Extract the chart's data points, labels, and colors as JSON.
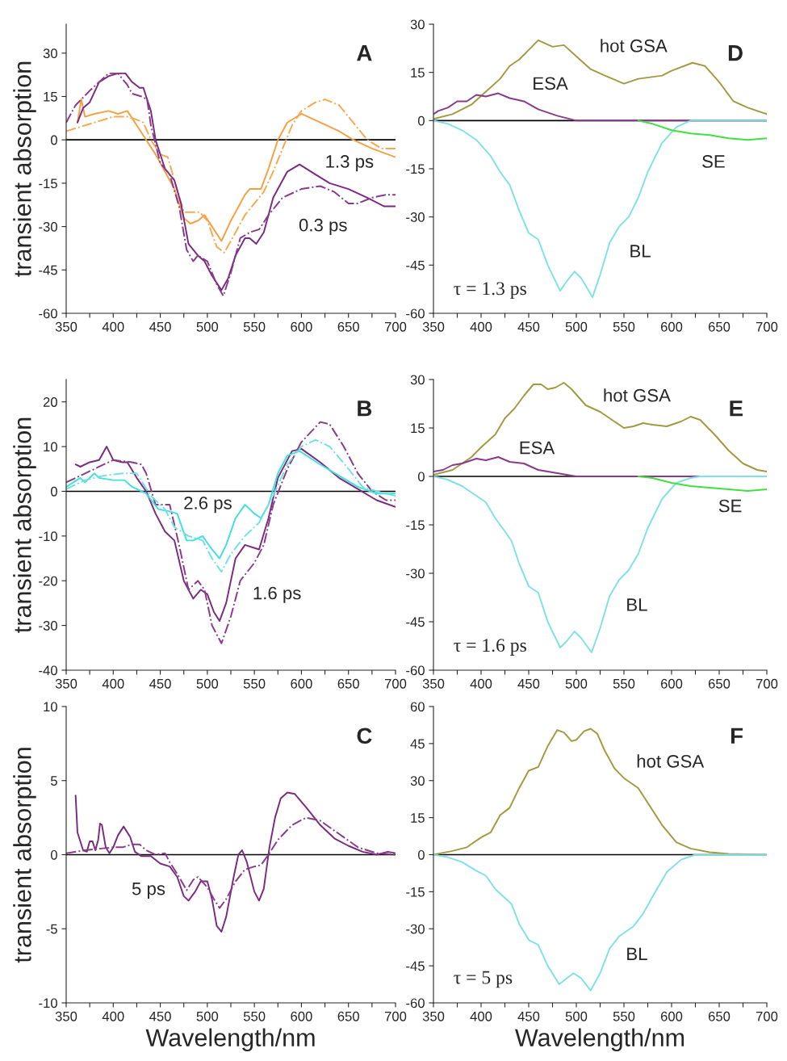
{
  "chart_data": [
    {
      "type": "line",
      "title": "A",
      "ylabel": "transient absorption",
      "xlim": [
        350,
        700
      ],
      "ylim": [
        -60,
        40
      ],
      "xticks": [
        350,
        {
          "value": 375,
          "label": null
        },
        400,
        {
          "value": 425,
          "label": null
        },
        450,
        {
          "value": 475,
          "label": null
        },
        500,
        {
          "value": 525,
          "label": null
        },
        550,
        {
          "value": 575,
          "label": null
        },
        600,
        {
          "value": 625,
          "label": null
        },
        650,
        {
          "value": 675,
          "label": null
        },
        700
      ],
      "yticks": [
        -60,
        -45,
        -30,
        -15,
        0,
        15,
        30
      ],
      "grid": false,
      "legend": false,
      "ref_lines": [
        {
          "axis": "y",
          "value": 0,
          "color": "#000000"
        }
      ],
      "series": [
        {
          "name": "1.3 ps",
          "color": "#f5a040",
          "line_style": "solid",
          "x": [
            362,
            366,
            370,
            380,
            395,
            405,
            415,
            425,
            435,
            445,
            455,
            465,
            475,
            482,
            490,
            497,
            505,
            515,
            525,
            540,
            545,
            557,
            565,
            575,
            585,
            600,
            620,
            640,
            655,
            675,
            700
          ],
          "values": [
            6,
            14,
            8,
            9,
            10,
            9,
            10,
            5,
            0,
            -5,
            -11,
            -17,
            -27,
            -29,
            -28,
            -26,
            -30,
            -35,
            -28,
            -19,
            -17,
            -17,
            -10,
            0,
            6,
            9,
            6,
            3,
            0,
            -3,
            -6
          ]
        },
        {
          "color": "#f5a850",
          "line_style": "dashed",
          "x": [
            350,
            360,
            380,
            400,
            415,
            425,
            432,
            440,
            450,
            458,
            465,
            475,
            485,
            492,
            500,
            510,
            518,
            525,
            540,
            550,
            560,
            570,
            580,
            590,
            600,
            615,
            625,
            640,
            655,
            670,
            685,
            700
          ],
          "values": [
            3,
            4,
            6,
            8,
            8,
            7,
            6,
            0,
            -5,
            -6,
            -14,
            -25,
            -25,
            -25,
            -28,
            -37,
            -39,
            -35,
            -26,
            -22,
            -18,
            -11,
            -3,
            5,
            10,
            13,
            14,
            12,
            6,
            0,
            -3,
            -3
          ]
        },
        {
          "name": "0.3 ps",
          "color": "#7a2a80",
          "line_style": "solid",
          "x": [
            362,
            368,
            375,
            385,
            395,
            405,
            413,
            420,
            428,
            432,
            440,
            445,
            455,
            465,
            472,
            480,
            490,
            497,
            505,
            515,
            522,
            530,
            540,
            545,
            552,
            560,
            570,
            585,
            598,
            615,
            630,
            650,
            670,
            688,
            700
          ],
          "values": [
            6,
            11,
            13,
            20,
            22,
            23,
            23,
            20,
            18,
            18,
            10,
            0,
            -10,
            -14,
            -22,
            -36,
            -40,
            -42,
            -47,
            -52,
            -48,
            -40,
            -34,
            -34,
            -36,
            -32,
            -20,
            -11,
            -8.5,
            -12,
            -15,
            -17,
            -20,
            -23,
            -23
          ]
        },
        {
          "color": "#8a3a8a",
          "line_style": "dashed",
          "x": [
            350,
            360,
            375,
            385,
            395,
            405,
            415,
            420,
            430,
            436,
            440,
            450,
            460,
            470,
            478,
            485,
            490,
            500,
            510,
            517,
            525,
            535,
            545,
            555,
            565,
            580,
            600,
            620,
            635,
            650,
            660,
            675,
            690,
            700
          ],
          "values": [
            6,
            12,
            17,
            20,
            23,
            23,
            19,
            16,
            15,
            14,
            5,
            -8,
            -12,
            -23,
            -38,
            -42,
            -40,
            -42,
            -50,
            -54,
            -46,
            -34,
            -32,
            -31,
            -26,
            -20,
            -17,
            -16,
            -18,
            -22,
            -22,
            -20,
            -19,
            -19
          ]
        }
      ]
    },
    {
      "type": "line",
      "title": "D",
      "xlim": [
        350,
        700
      ],
      "ylim": [
        -60,
        30
      ],
      "xticks": [
        350,
        {
          "value": 375,
          "label": null
        },
        400,
        {
          "value": 425,
          "label": null
        },
        450,
        {
          "value": 475,
          "label": null
        },
        500,
        {
          "value": 525,
          "label": null
        },
        550,
        {
          "value": 575,
          "label": null
        },
        600,
        {
          "value": 625,
          "label": null
        },
        650,
        {
          "value": 675,
          "label": null
        },
        700
      ],
      "yticks": [
        -60,
        -45,
        -30,
        -15,
        0,
        15,
        30
      ],
      "grid": false,
      "legend": false,
      "ref_lines": [
        {
          "axis": "y",
          "value": 0,
          "color": "#000000"
        }
      ],
      "annotations": [
        "τ = 1.3 ps"
      ],
      "series": [
        {
          "name": "hot GSA",
          "color": "#a09a40",
          "line_style": "solid",
          "x": [
            350,
            370,
            390,
            405,
            420,
            430,
            440,
            450,
            460,
            475,
            487,
            500,
            515,
            530,
            550,
            565,
            590,
            600,
            622,
            635,
            650,
            665,
            680,
            700
          ],
          "values": [
            0.5,
            2,
            5,
            9,
            13,
            17,
            19,
            22,
            25,
            23,
            23.5,
            20,
            16,
            14,
            11.5,
            13,
            14,
            15.5,
            18,
            17,
            12,
            6,
            4,
            2
          ]
        },
        {
          "name": "ESA",
          "color": "#8a3a8a",
          "line_style": "solid",
          "x": [
            350,
            355,
            365,
            375,
            385,
            395,
            405,
            418,
            430,
            445,
            460,
            480,
            500,
            520,
            700
          ],
          "values": [
            2,
            3,
            4,
            6,
            6,
            8,
            7.5,
            8.5,
            7,
            6,
            3.5,
            1.5,
            0,
            0,
            0
          ]
        },
        {
          "name": "BL",
          "color": "#80e0e8",
          "line_style": "solid",
          "x": [
            350,
            365,
            380,
            395,
            410,
            420,
            430,
            440,
            450,
            460,
            470,
            483,
            490,
            498,
            505,
            517,
            525,
            535,
            545,
            555,
            565,
            575,
            590,
            605,
            620,
            700
          ],
          "values": [
            0,
            -1,
            -3,
            -6,
            -11,
            -16,
            -20,
            -28,
            -35,
            -37,
            -45,
            -53,
            -50,
            -47,
            -49,
            -55,
            -48,
            -38,
            -33,
            -30,
            -24,
            -16,
            -7,
            -2,
            0,
            0
          ]
        },
        {
          "name": "SE",
          "color": "#40e040",
          "line_style": "solid",
          "x": [
            565,
            580,
            600,
            620,
            640,
            660,
            680,
            700
          ],
          "values": [
            0,
            -1,
            -3,
            -4,
            -4.5,
            -5.5,
            -6,
            -5.5
          ]
        }
      ]
    },
    {
      "type": "line",
      "title": "B",
      "ylabel": "transient absorption",
      "xlim": [
        350,
        700
      ],
      "ylim": [
        -40,
        25
      ],
      "xticks": [
        350,
        {
          "value": 375,
          "label": null
        },
        400,
        {
          "value": 425,
          "label": null
        },
        450,
        {
          "value": 475,
          "label": null
        },
        500,
        {
          "value": 525,
          "label": null
        },
        550,
        {
          "value": 575,
          "label": null
        },
        600,
        {
          "value": 625,
          "label": null
        },
        650,
        {
          "value": 675,
          "label": null
        },
        700
      ],
      "yticks": [
        -40,
        -30,
        -20,
        -10,
        0,
        10,
        20
      ],
      "grid": false,
      "legend": false,
      "ref_lines": [
        {
          "axis": "y",
          "value": 0,
          "color": "#000000"
        }
      ],
      "series": [
        {
          "name": "1.6 ps",
          "color": "#7a2a80",
          "line_style": "solid",
          "x": [
            360,
            365,
            375,
            385,
            393,
            400,
            410,
            415,
            425,
            435,
            445,
            455,
            465,
            475,
            485,
            493,
            500,
            507,
            513,
            520,
            530,
            540,
            555,
            565,
            575,
            590,
            600,
            620,
            640,
            660,
            680,
            700
          ],
          "values": [
            6,
            5.5,
            6.5,
            7,
            10,
            7,
            6.5,
            6.5,
            3,
            0,
            -5,
            -9,
            -11,
            -20,
            -24,
            -22,
            -23,
            -27,
            -29,
            -25,
            -15,
            -12,
            -13,
            -6,
            3,
            9,
            9.5,
            6.5,
            3,
            0.5,
            -2,
            -3.5
          ]
        },
        {
          "color": "#8a3a8a",
          "line_style": "dashed",
          "x": [
            350,
            370,
            390,
            400,
            420,
            430,
            435,
            445,
            460,
            470,
            480,
            490,
            497,
            505,
            515,
            525,
            535,
            550,
            560,
            570,
            585,
            600,
            620,
            630,
            645,
            660,
            675,
            690,
            700
          ],
          "values": [
            2,
            4,
            6,
            7,
            6.5,
            6,
            4,
            -3,
            -3,
            -12,
            -22,
            -20,
            -22,
            -30,
            -34,
            -28,
            -20,
            -16,
            -12,
            -3,
            5,
            11,
            15.5,
            15,
            10,
            4,
            0,
            -2,
            -2
          ]
        },
        {
          "name": "2.6 ps",
          "color": "#40e0e0",
          "line_style": "solid",
          "x": [
            350,
            365,
            370,
            380,
            385,
            400,
            412,
            420,
            435,
            448,
            460,
            468,
            478,
            485,
            495,
            505,
            513,
            520,
            530,
            540,
            550,
            557,
            565,
            575,
            585,
            598,
            620,
            640,
            660,
            680,
            700
          ],
          "values": [
            1,
            3,
            2,
            4,
            3,
            2.5,
            2.5,
            1,
            -0.5,
            -4,
            -4.5,
            -5,
            -11,
            -11,
            -10,
            -13,
            -15,
            -12,
            -6,
            -3,
            -5,
            -6,
            -3,
            4,
            8,
            9,
            6,
            3.5,
            1,
            -0.5,
            -0.5
          ]
        },
        {
          "color": "#70e0e8",
          "line_style": "dashed",
          "x": [
            350,
            370,
            390,
            410,
            425,
            440,
            455,
            465,
            480,
            495,
            505,
            515,
            525,
            540,
            555,
            570,
            585,
            600,
            615,
            630,
            650,
            665,
            680,
            700
          ],
          "values": [
            0.5,
            2.5,
            3.5,
            4,
            4,
            -1,
            -4,
            -8,
            -10,
            -11,
            -15,
            -18,
            -14,
            -10,
            -7,
            -1,
            6,
            10,
            11.5,
            10,
            5,
            1,
            0,
            -1
          ]
        }
      ]
    },
    {
      "type": "line",
      "title": "E",
      "xlim": [
        350,
        700
      ],
      "ylim": [
        -60,
        30
      ],
      "xticks": [
        350,
        {
          "value": 375,
          "label": null
        },
        400,
        {
          "value": 425,
          "label": null
        },
        450,
        {
          "value": 475,
          "label": null
        },
        500,
        {
          "value": 525,
          "label": null
        },
        550,
        {
          "value": 575,
          "label": null
        },
        600,
        {
          "value": 625,
          "label": null
        },
        650,
        {
          "value": 675,
          "label": null
        },
        700
      ],
      "yticks": [
        -60,
        -45,
        -30,
        -15,
        0,
        15,
        30
      ],
      "grid": false,
      "legend": false,
      "ref_lines": [
        {
          "axis": "y",
          "value": 0,
          "color": "#000000"
        }
      ],
      "annotations": [
        "τ = 1.6 ps"
      ],
      "series": [
        {
          "name": "hot GSA",
          "color": "#a09a40",
          "line_style": "solid",
          "x": [
            350,
            370,
            390,
            400,
            415,
            425,
            435,
            445,
            455,
            463,
            470,
            478,
            487,
            495,
            510,
            525,
            540,
            550,
            560,
            570,
            580,
            595,
            610,
            620,
            630,
            645,
            660,
            675,
            690,
            700
          ],
          "values": [
            0.5,
            2,
            6,
            9,
            13,
            18,
            21,
            25,
            28.5,
            28.5,
            27,
            27.5,
            29,
            27,
            22,
            20,
            17,
            15,
            15.5,
            16.5,
            16,
            15.5,
            17,
            18.5,
            17.5,
            13,
            8,
            4,
            2,
            1.5
          ]
        },
        {
          "name": "ESA",
          "color": "#8a3a8a",
          "line_style": "solid",
          "x": [
            350,
            360,
            370,
            380,
            395,
            405,
            418,
            430,
            445,
            460,
            480,
            500,
            700
          ],
          "values": [
            1.5,
            2,
            3.5,
            4,
            5.5,
            5,
            6,
            4.5,
            4,
            2,
            1,
            0,
            0
          ]
        },
        {
          "name": "BL",
          "color": "#80e0e8",
          "line_style": "solid",
          "x": [
            350,
            365,
            380,
            395,
            405,
            415,
            425,
            432,
            440,
            450,
            460,
            470,
            483,
            490,
            498,
            505,
            516,
            525,
            535,
            545,
            555,
            565,
            575,
            590,
            605,
            620,
            630,
            700
          ],
          "values": [
            0,
            -1,
            -3,
            -6,
            -8,
            -13,
            -17,
            -20,
            -27,
            -34,
            -36,
            -45,
            -53,
            -51,
            -48,
            -50,
            -54.5,
            -47,
            -37,
            -32,
            -29,
            -24,
            -16,
            -7,
            -2,
            -0.5,
            0,
            0
          ]
        },
        {
          "name": "SE",
          "color": "#40e040",
          "line_style": "solid",
          "x": [
            565,
            580,
            600,
            620,
            640,
            660,
            680,
            700
          ],
          "values": [
            0,
            -0.5,
            -2,
            -3,
            -3.5,
            -4,
            -4.5,
            -4
          ]
        }
      ]
    },
    {
      "type": "line",
      "title": "C",
      "ylabel": "transient absorption",
      "xlabel": "Wavelength/nm",
      "xlim": [
        350,
        700
      ],
      "ylim": [
        -10,
        10
      ],
      "xticks": [
        350,
        {
          "value": 375,
          "label": null
        },
        400,
        {
          "value": 425,
          "label": null
        },
        450,
        {
          "value": 475,
          "label": null
        },
        500,
        {
          "value": 525,
          "label": null
        },
        550,
        {
          "value": 575,
          "label": null
        },
        600,
        {
          "value": 625,
          "label": null
        },
        650,
        {
          "value": 675,
          "label": null
        },
        700
      ],
      "yticks": [
        -10,
        -5,
        0,
        5,
        10
      ],
      "grid": false,
      "legend": false,
      "ref_lines": [
        {
          "axis": "y",
          "value": 0,
          "color": "#000000"
        }
      ],
      "series": [
        {
          "name": "5 ps",
          "color": "#7a2a80",
          "line_style": "solid",
          "x": [
            360,
            362,
            368,
            372,
            375,
            378,
            381,
            384,
            386,
            388,
            392,
            396,
            400,
            405,
            411,
            418,
            423,
            430,
            440,
            450,
            460,
            468,
            475,
            480,
            487,
            493,
            500,
            505,
            510,
            515,
            520,
            528,
            533,
            537,
            542,
            550,
            555,
            560,
            566,
            572,
            578,
            585,
            593,
            605,
            620,
            635,
            650,
            665,
            680,
            692,
            700
          ],
          "values": [
            4,
            1.5,
            0.3,
            0.2,
            0.9,
            0.9,
            0.3,
            1,
            2.1,
            2,
            0.5,
            0.1,
            0.5,
            1.3,
            1.9,
            1.2,
            0.2,
            -0.1,
            -0.1,
            -0.6,
            -0.8,
            -1.5,
            -2.8,
            -3.1,
            -2.5,
            -1.8,
            -1.8,
            -3,
            -4.8,
            -5.2,
            -4.2,
            -1.5,
            0,
            0.3,
            -0.5,
            -2.5,
            -3.1,
            -2.3,
            0.5,
            2.5,
            3.8,
            4.2,
            4.1,
            3.2,
            2,
            1.1,
            0.6,
            0.2,
            0,
            0.2,
            0.1
          ]
        },
        {
          "color": "#8a3a8a",
          "line_style": "dashed",
          "x": [
            350,
            370,
            385,
            400,
            410,
            420,
            428,
            435,
            445,
            455,
            460,
            470,
            478,
            485,
            490,
            500,
            507,
            513,
            520,
            530,
            540,
            550,
            557,
            565,
            575,
            590,
            605,
            620,
            640,
            660,
            680,
            700
          ],
          "values": [
            0.1,
            0.3,
            0.4,
            0.5,
            0.5,
            0.7,
            0.7,
            0.3,
            0,
            0.1,
            -0.5,
            -1.5,
            -2.4,
            -1.7,
            -1.5,
            -2.2,
            -3,
            -3.6,
            -3,
            -1.8,
            -1,
            -0.8,
            -0.7,
            0,
            1,
            2,
            2.5,
            2.3,
            1.4,
            0.5,
            0.1,
            0
          ]
        }
      ]
    },
    {
      "type": "line",
      "title": "F",
      "xlabel": "Wavelength/nm",
      "xlim": [
        350,
        700
      ],
      "ylim": [
        -60,
        60
      ],
      "xticks": [
        350,
        {
          "value": 375,
          "label": null
        },
        400,
        {
          "value": 425,
          "label": null
        },
        450,
        {
          "value": 475,
          "label": null
        },
        500,
        {
          "value": 525,
          "label": null
        },
        550,
        {
          "value": 575,
          "label": null
        },
        600,
        {
          "value": 625,
          "label": null
        },
        650,
        {
          "value": 675,
          "label": null
        },
        700
      ],
      "yticks": [
        -60,
        -45,
        -30,
        -15,
        0,
        15,
        30,
        45,
        60
      ],
      "grid": false,
      "legend": false,
      "ref_lines": [
        {
          "axis": "y",
          "value": 0,
          "color": "#000000"
        }
      ],
      "annotations": [
        "τ = 5 ps"
      ],
      "series": [
        {
          "name": "hot GSA",
          "color": "#a09a40",
          "line_style": "solid",
          "x": [
            350,
            370,
            385,
            400,
            410,
            420,
            430,
            440,
            450,
            460,
            470,
            480,
            487,
            495,
            500,
            508,
            515,
            522,
            530,
            540,
            550,
            565,
            575,
            590,
            605,
            620,
            640,
            660,
            700
          ],
          "values": [
            0,
            1.5,
            3,
            7,
            9,
            16,
            19,
            27,
            34,
            35.5,
            44,
            50.5,
            49.5,
            46,
            46.5,
            50,
            51,
            49,
            42,
            35,
            31,
            27,
            21,
            12,
            5,
            2.5,
            1,
            0.3,
            0
          ]
        },
        {
          "name": "BL",
          "color": "#80e0e8",
          "line_style": "solid",
          "x": [
            350,
            365,
            380,
            395,
            405,
            415,
            425,
            432,
            440,
            450,
            460,
            470,
            482,
            490,
            497,
            505,
            515,
            525,
            535,
            545,
            560,
            570,
            580,
            595,
            610,
            625,
            700
          ],
          "values": [
            0,
            -1,
            -3,
            -6.5,
            -8.5,
            -14,
            -17.5,
            -20,
            -28,
            -34.5,
            -36.5,
            -45,
            -52.5,
            -50,
            -48,
            -50,
            -55,
            -48,
            -38,
            -33,
            -29,
            -24,
            -17,
            -7,
            -2,
            0,
            0
          ]
        }
      ]
    }
  ]
}
